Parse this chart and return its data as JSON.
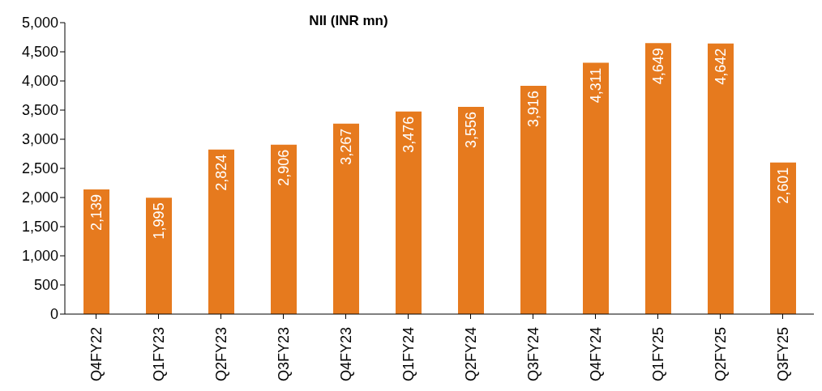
{
  "chart_data": {
    "type": "bar",
    "title": "NII (INR mn)",
    "categories": [
      "Q4FY22",
      "Q1FY23",
      "Q2FY23",
      "Q3FY23",
      "Q4FY23",
      "Q1FY24",
      "Q2FY24",
      "Q3FY24",
      "Q4FY24",
      "Q1FY25",
      "Q2FY25",
      "Q3FY25"
    ],
    "values": [
      2139,
      1995,
      2824,
      2906,
      3267,
      3476,
      3556,
      3916,
      4311,
      4649,
      4642,
      2601
    ],
    "value_labels": [
      "2,139",
      "1,995",
      "2,824",
      "2,906",
      "3,267",
      "3,476",
      "3,556",
      "3,916",
      "4,311",
      "4,649",
      "4,642",
      "2,601"
    ],
    "color": "#e67a1e",
    "ylim": [
      0,
      5000
    ],
    "yticks": [
      0,
      500,
      {
        "value": 1000,
        "label": "1,000"
      },
      {
        "value": 1500,
        "label": "1,500"
      },
      {
        "value": 2000,
        "label": "2,000"
      },
      {
        "value": 2500,
        "label": "2,500"
      },
      {
        "value": 3000,
        "label": "3,000"
      },
      {
        "value": 3500,
        "label": "3,500"
      },
      {
        "value": 4000,
        "label": "4,000"
      },
      {
        "value": 4500,
        "label": "4,500"
      },
      {
        "value": 5000,
        "label": "5,000"
      }
    ],
    "grid": false,
    "legend": false
  }
}
